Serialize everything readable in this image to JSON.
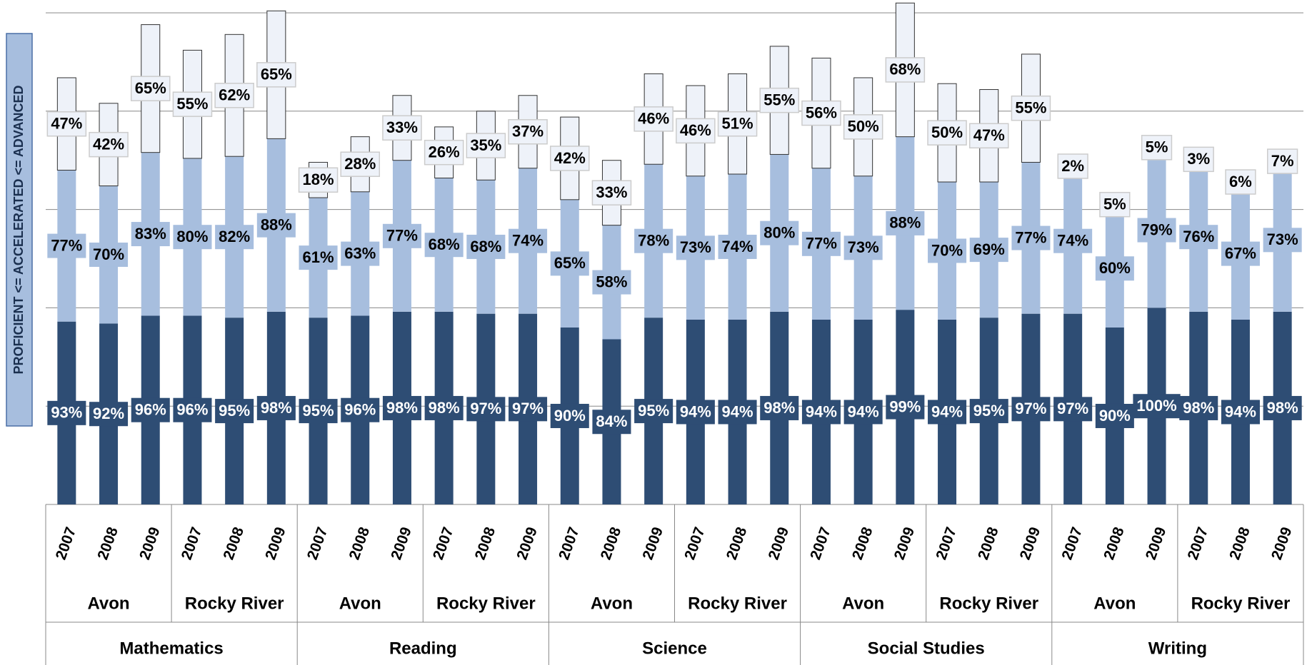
{
  "chart_data": {
    "type": "stacked-bar",
    "y_label": "PROFICIENT <= ACCELERATED <= ADVANCED",
    "categories": [
      "2007",
      "2008",
      "2009",
      "2007",
      "2008",
      "2009",
      "2007",
      "2008",
      "2009",
      "2007",
      "2008",
      "2009",
      "2007",
      "2008",
      "2009",
      "2007",
      "2008",
      "2009",
      "2007",
      "2008",
      "2009",
      "2007",
      "2008",
      "2009",
      "2007",
      "2008",
      "2009",
      "2007",
      "2008",
      "2009"
    ],
    "district_groups": [
      "Avon",
      "Rocky River",
      "Avon",
      "Rocky River",
      "Avon",
      "Rocky River",
      "Avon",
      "Rocky River",
      "Avon",
      "Rocky River"
    ],
    "subject_groups": [
      "Mathematics",
      "Reading",
      "Science",
      "Social Studies",
      "Writing"
    ],
    "series": [
      {
        "color": "#2e4d74",
        "label_color": "#ffffff",
        "values": [
          93,
          92,
          96,
          96,
          95,
          98,
          95,
          96,
          98,
          98,
          97,
          97,
          90,
          84,
          95,
          94,
          94,
          98,
          94,
          94,
          99,
          94,
          95,
          97,
          97,
          90,
          100,
          98,
          94,
          98
        ],
        "value_labels": [
          "93%",
          "92%",
          "96%",
          "96%",
          "95%",
          "98%",
          "95%",
          "96%",
          "98%",
          "98%",
          "97%",
          "97%",
          "90%",
          "84%",
          "95%",
          "94%",
          "94%",
          "98%",
          "94%",
          "94%",
          "99%",
          "94%",
          "95%",
          "97%",
          "97%",
          "90%",
          "100%",
          "98%",
          "94%",
          "98%"
        ]
      },
      {
        "color": "#a7bede",
        "label_color": "#000000",
        "values": [
          77,
          70,
          83,
          80,
          82,
          88,
          61,
          63,
          77,
          68,
          68,
          74,
          65,
          58,
          78,
          73,
          74,
          80,
          77,
          73,
          88,
          70,
          69,
          77,
          74,
          60,
          79,
          76,
          67,
          73
        ],
        "value_labels": [
          "77%",
          "70%",
          "83%",
          "80%",
          "82%",
          "88%",
          "61%",
          "63%",
          "77%",
          "68%",
          "68%",
          "74%",
          "65%",
          "58%",
          "78%",
          "73%",
          "74%",
          "80%",
          "77%",
          "73%",
          "88%",
          "70%",
          "69%",
          "77%",
          "74%",
          "60%",
          "79%",
          "76%",
          "67%",
          "73%"
        ]
      },
      {
        "color": "#eef2f9",
        "label_color": "#000000",
        "values": [
          47,
          42,
          65,
          55,
          62,
          65,
          18,
          28,
          33,
          26,
          35,
          37,
          42,
          33,
          46,
          46,
          51,
          55,
          56,
          50,
          68,
          50,
          47,
          55,
          2,
          5,
          5,
          3,
          6,
          7
        ],
        "value_labels": [
          "47%",
          "42%",
          "65%",
          "55%",
          "62%",
          "65%",
          "18%",
          "28%",
          "33%",
          "26%",
          "35%",
          "37%",
          "42%",
          "33%",
          "46%",
          "46%",
          "51%",
          "55%",
          "56%",
          "50%",
          "68%",
          "50%",
          "47%",
          "55%",
          "2%",
          "5%",
          "5%",
          "3%",
          "6%",
          "7%"
        ]
      }
    ],
    "ylim": [
      0,
      250
    ],
    "yticks": [
      0,
      50,
      100,
      150,
      200,
      250
    ],
    "grid": true
  }
}
